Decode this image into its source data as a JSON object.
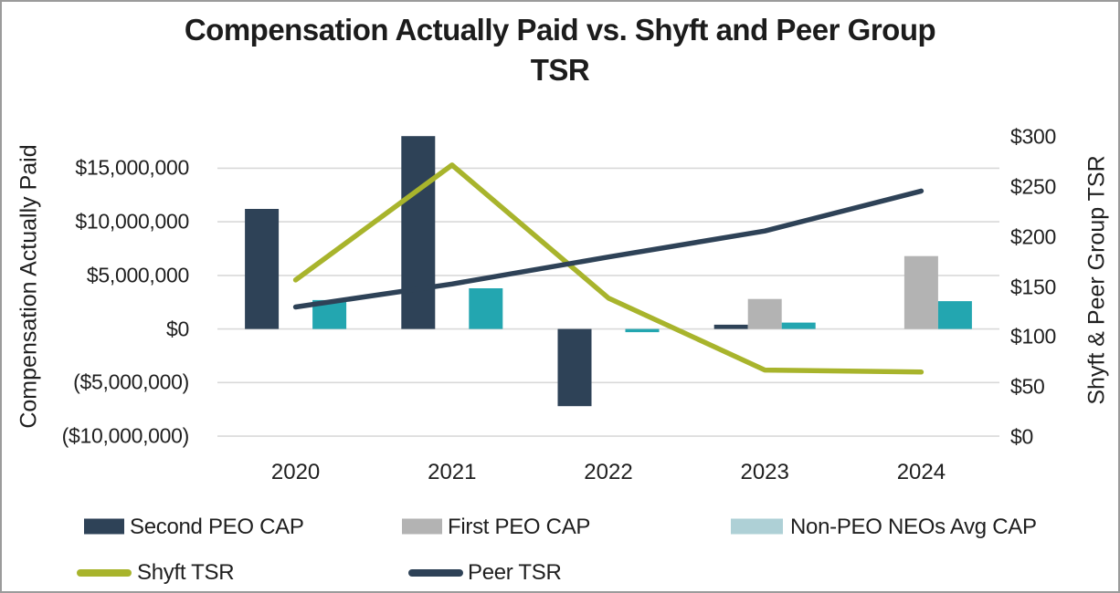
{
  "chart_data": {
    "type": "combo-bar-line",
    "title": "Compensation Actually Paid vs. Shyft and Peer Group TSR",
    "title_lines": {
      "line1": "Compensation Actually Paid vs. Shyft and Peer Group",
      "line2": "TSR"
    },
    "categories": [
      "2020",
      "2021",
      "2022",
      "2023",
      "2024"
    ],
    "left_axis": {
      "label": "Compensation Actually Paid",
      "tick_labels": [
        "$15,000,000",
        "$10,000,000",
        "$5,000,000",
        "$0",
        "($5,000,000)",
        "($10,000,000)"
      ],
      "tick_values": [
        15000000,
        10000000,
        5000000,
        0,
        -5000000,
        -10000000
      ],
      "range": [
        -10080000,
        18100000
      ]
    },
    "right_axis": {
      "label": "Shyft & Peer Group TSR",
      "tick_labels": [
        "$300",
        "$250",
        "$200",
        "$150",
        "$100",
        "$50",
        "$0"
      ],
      "tick_values": [
        300,
        250,
        200,
        150,
        100,
        50,
        0
      ],
      "range": [
        0,
        302
      ]
    },
    "bar_series": [
      {
        "name": "Second PEO CAP",
        "color": "#2e4257",
        "legend_color": "#2e4257",
        "values": [
          11200000,
          18000000,
          -7200000,
          400000,
          null
        ]
      },
      {
        "name": "First PEO CAP",
        "color": "#b3b3b3",
        "legend_color": "#b3b3b3",
        "values": [
          null,
          null,
          null,
          2800000,
          6800000
        ]
      },
      {
        "name": "Non-PEO NEOs Avg CAP",
        "color": "#23a6b0",
        "legend_color": "#aed0d6",
        "values": [
          2700000,
          3800000,
          -300000,
          600000,
          2600000
        ]
      }
    ],
    "line_series": [
      {
        "name": "Shyft TSR",
        "color": "#a8b42c",
        "values": [
          157,
          272,
          139,
          67,
          65
        ]
      },
      {
        "name": "Peer TSR",
        "color": "#2e4257",
        "values": [
          130,
          153,
          180,
          206,
          246
        ]
      }
    ],
    "grid": true,
    "gridline_color": "#d9d9d9",
    "legend_position": "bottom"
  }
}
